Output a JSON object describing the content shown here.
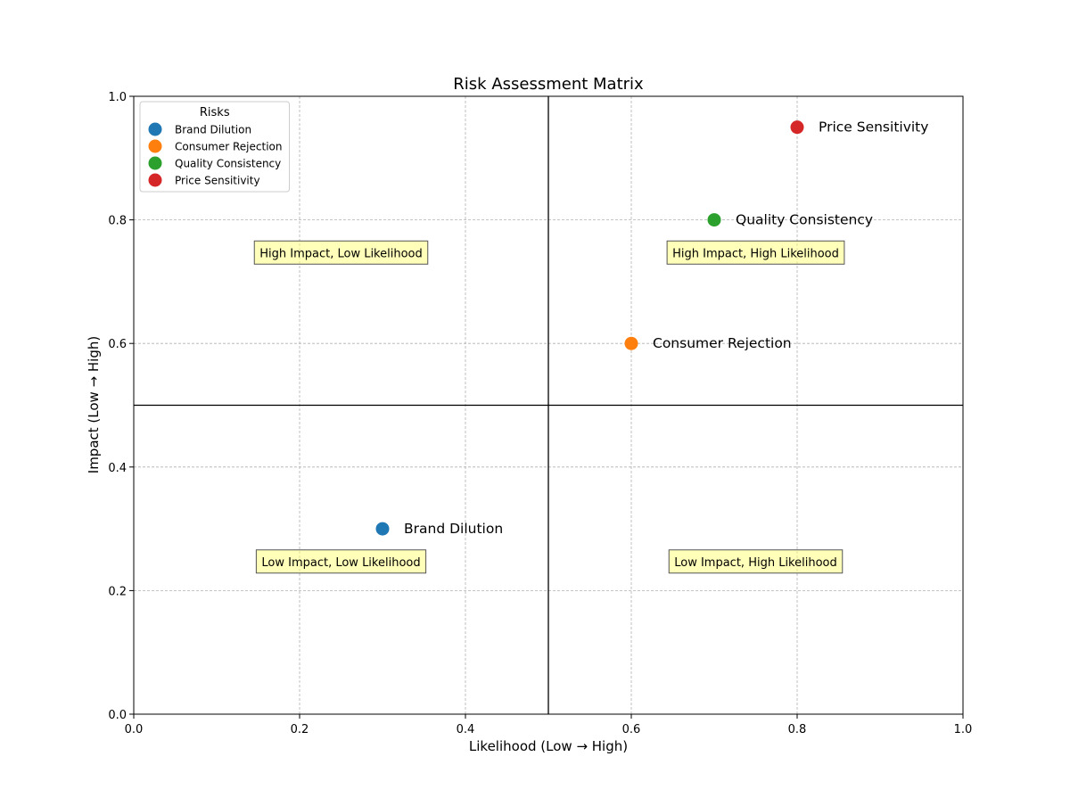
{
  "chart_data": {
    "type": "scatter",
    "title": "Risk Assessment Matrix",
    "xlabel": "Likelihood (Low → High)",
    "ylabel": "Impact (Low → High)",
    "xlim": [
      0,
      1
    ],
    "ylim": [
      0,
      1
    ],
    "xticks": [
      "0.0",
      "0.2",
      "0.4",
      "0.6",
      "0.8",
      "1.0"
    ],
    "yticks": [
      "0.0",
      "0.2",
      "0.4",
      "0.6",
      "0.8",
      "1.0"
    ],
    "grid": true,
    "dividers": {
      "x": 0.5,
      "y": 0.5
    },
    "legend": {
      "title": "Risks",
      "placement": "top-left"
    },
    "series": [
      {
        "name": "Brand Dilution",
        "x": 0.3,
        "y": 0.3,
        "color": "#1f77b4"
      },
      {
        "name": "Consumer Rejection",
        "x": 0.6,
        "y": 0.6,
        "color": "#ff7f0e"
      },
      {
        "name": "Quality Consistency",
        "x": 0.7,
        "y": 0.8,
        "color": "#2ca02c"
      },
      {
        "name": "Price Sensitivity",
        "x": 0.8,
        "y": 0.95,
        "color": "#d62728"
      }
    ],
    "quadrant_labels": [
      {
        "text": "High Impact, Low Likelihood",
        "x": 0.25,
        "y": 0.75
      },
      {
        "text": "High Impact, High Likelihood",
        "x": 0.75,
        "y": 0.75
      },
      {
        "text": "Low Impact, Low Likelihood",
        "x": 0.25,
        "y": 0.25
      },
      {
        "text": "Low Impact, High Likelihood",
        "x": 0.75,
        "y": 0.25
      }
    ],
    "quadrant_label_color": "#ffff80"
  }
}
